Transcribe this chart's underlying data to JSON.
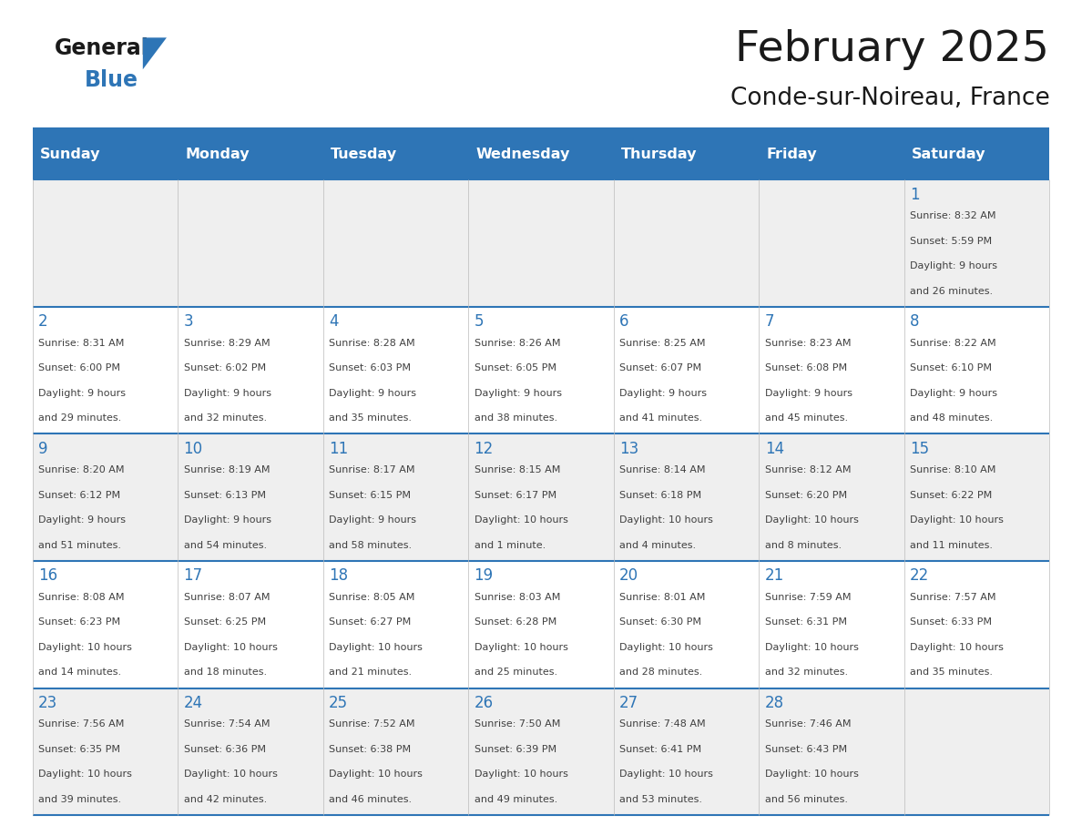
{
  "title": "February 2025",
  "subtitle": "Conde-sur-Noireau, France",
  "days_of_week": [
    "Sunday",
    "Monday",
    "Tuesday",
    "Wednesday",
    "Thursday",
    "Friday",
    "Saturday"
  ],
  "header_bg": "#2E75B6",
  "header_text": "#FFFFFF",
  "cell_bg_light": "#EFEFEF",
  "cell_bg_white": "#FFFFFF",
  "separator_color": "#2E75B6",
  "text_color": "#404040",
  "day_number_color": "#2E75B6",
  "calendar_data": [
    [
      null,
      null,
      null,
      null,
      null,
      null,
      {
        "day": 1,
        "sunrise": "8:32 AM",
        "sunset": "5:59 PM",
        "daylight": "9 hours and 26 minutes."
      }
    ],
    [
      {
        "day": 2,
        "sunrise": "8:31 AM",
        "sunset": "6:00 PM",
        "daylight": "9 hours and 29 minutes."
      },
      {
        "day": 3,
        "sunrise": "8:29 AM",
        "sunset": "6:02 PM",
        "daylight": "9 hours and 32 minutes."
      },
      {
        "day": 4,
        "sunrise": "8:28 AM",
        "sunset": "6:03 PM",
        "daylight": "9 hours and 35 minutes."
      },
      {
        "day": 5,
        "sunrise": "8:26 AM",
        "sunset": "6:05 PM",
        "daylight": "9 hours and 38 minutes."
      },
      {
        "day": 6,
        "sunrise": "8:25 AM",
        "sunset": "6:07 PM",
        "daylight": "9 hours and 41 minutes."
      },
      {
        "day": 7,
        "sunrise": "8:23 AM",
        "sunset": "6:08 PM",
        "daylight": "9 hours and 45 minutes."
      },
      {
        "day": 8,
        "sunrise": "8:22 AM",
        "sunset": "6:10 PM",
        "daylight": "9 hours and 48 minutes."
      }
    ],
    [
      {
        "day": 9,
        "sunrise": "8:20 AM",
        "sunset": "6:12 PM",
        "daylight": "9 hours and 51 minutes."
      },
      {
        "day": 10,
        "sunrise": "8:19 AM",
        "sunset": "6:13 PM",
        "daylight": "9 hours and 54 minutes."
      },
      {
        "day": 11,
        "sunrise": "8:17 AM",
        "sunset": "6:15 PM",
        "daylight": "9 hours and 58 minutes."
      },
      {
        "day": 12,
        "sunrise": "8:15 AM",
        "sunset": "6:17 PM",
        "daylight": "10 hours and 1 minute."
      },
      {
        "day": 13,
        "sunrise": "8:14 AM",
        "sunset": "6:18 PM",
        "daylight": "10 hours and 4 minutes."
      },
      {
        "day": 14,
        "sunrise": "8:12 AM",
        "sunset": "6:20 PM",
        "daylight": "10 hours and 8 minutes."
      },
      {
        "day": 15,
        "sunrise": "8:10 AM",
        "sunset": "6:22 PM",
        "daylight": "10 hours and 11 minutes."
      }
    ],
    [
      {
        "day": 16,
        "sunrise": "8:08 AM",
        "sunset": "6:23 PM",
        "daylight": "10 hours and 14 minutes."
      },
      {
        "day": 17,
        "sunrise": "8:07 AM",
        "sunset": "6:25 PM",
        "daylight": "10 hours and 18 minutes."
      },
      {
        "day": 18,
        "sunrise": "8:05 AM",
        "sunset": "6:27 PM",
        "daylight": "10 hours and 21 minutes."
      },
      {
        "day": 19,
        "sunrise": "8:03 AM",
        "sunset": "6:28 PM",
        "daylight": "10 hours and 25 minutes."
      },
      {
        "day": 20,
        "sunrise": "8:01 AM",
        "sunset": "6:30 PM",
        "daylight": "10 hours and 28 minutes."
      },
      {
        "day": 21,
        "sunrise": "7:59 AM",
        "sunset": "6:31 PM",
        "daylight": "10 hours and 32 minutes."
      },
      {
        "day": 22,
        "sunrise": "7:57 AM",
        "sunset": "6:33 PM",
        "daylight": "10 hours and 35 minutes."
      }
    ],
    [
      {
        "day": 23,
        "sunrise": "7:56 AM",
        "sunset": "6:35 PM",
        "daylight": "10 hours and 39 minutes."
      },
      {
        "day": 24,
        "sunrise": "7:54 AM",
        "sunset": "6:36 PM",
        "daylight": "10 hours and 42 minutes."
      },
      {
        "day": 25,
        "sunrise": "7:52 AM",
        "sunset": "6:38 PM",
        "daylight": "10 hours and 46 minutes."
      },
      {
        "day": 26,
        "sunrise": "7:50 AM",
        "sunset": "6:39 PM",
        "daylight": "10 hours and 49 minutes."
      },
      {
        "day": 27,
        "sunrise": "7:48 AM",
        "sunset": "6:41 PM",
        "daylight": "10 hours and 53 minutes."
      },
      {
        "day": 28,
        "sunrise": "7:46 AM",
        "sunset": "6:43 PM",
        "daylight": "10 hours and 56 minutes."
      },
      null
    ]
  ]
}
